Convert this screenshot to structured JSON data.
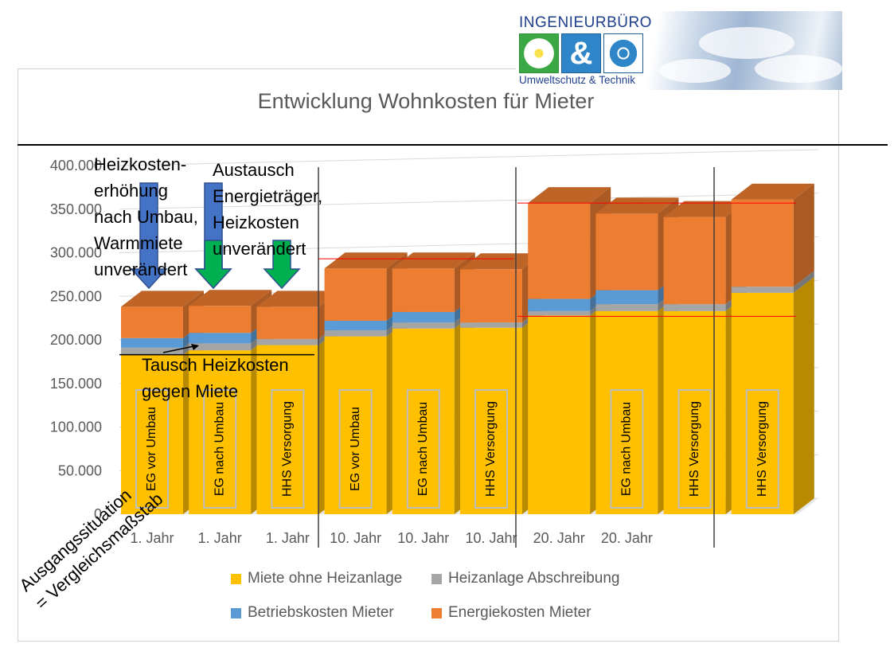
{
  "logo": {
    "brand": "INGENIEURBÜRO",
    "symbol": "&",
    "subtitle": "Umweltschutz & Technik"
  },
  "chart_data": {
    "type": "bar",
    "stacked": true,
    "title": "Entwicklung Wohnkosten für Mieter",
    "categories": [
      "1. Jahr",
      "1. Jahr",
      "1. Jahr",
      "10. Jahr",
      "10. Jahr",
      "10. Jahr",
      "20. Jahr",
      "20. Jahr",
      "",
      ""
    ],
    "bar_labels": [
      "EG vor Umbau",
      "EG nach Umbau",
      "HHS Versorgung",
      "EG vor Umbau",
      "EG nach Umbau",
      "HHS Versorgung",
      "",
      "EG nach Umbau",
      "HHS Versorgung",
      "HHS Versorgung"
    ],
    "series": [
      {
        "name": "Miete ohne Heizanlage",
        "color": "#ffc000",
        "values": [
          183000,
          188000,
          194000,
          204000,
          213000,
          214000,
          228000,
          233000,
          233000,
          254000
        ]
      },
      {
        "name": "Heizanlage Abschreibung",
        "color": "#a5a5a5",
        "values": [
          8000,
          8000,
          7000,
          7000,
          7000,
          6000,
          5000,
          8000,
          8000,
          7000
        ]
      },
      {
        "name": "Betriebskosten Mieter",
        "color": "#5b9bd5",
        "values": [
          11000,
          12000,
          0,
          11000,
          12000,
          0,
          14000,
          16000,
          0,
          0
        ]
      },
      {
        "name": "Energiekosten Mieter",
        "color": "#ed7d31",
        "values": [
          36000,
          31000,
          37000,
          60000,
          50000,
          61000,
          110000,
          88000,
          100000,
          100000
        ]
      }
    ],
    "ylim": [
      0,
      400000
    ],
    "yticks": [
      "0",
      "50.000",
      "100.000",
      "150.000",
      "200.000",
      "250.000",
      "300.000",
      "350.000",
      "400.000"
    ],
    "grid": true,
    "legend_position": "bottom"
  },
  "annotations": {
    "heat_increase": "Heizkosten-\nerhöhung\nnach Umbau,\nWarmmiete\nunverändert",
    "fuel_switch": "Austausch\nEnergieträger,\nHeizkosten\nunverändert",
    "swap": "Tausch Heizkosten\ngegen Miete",
    "baseline": "Ausgangssituation\n= Vergleichsmaßstab"
  }
}
